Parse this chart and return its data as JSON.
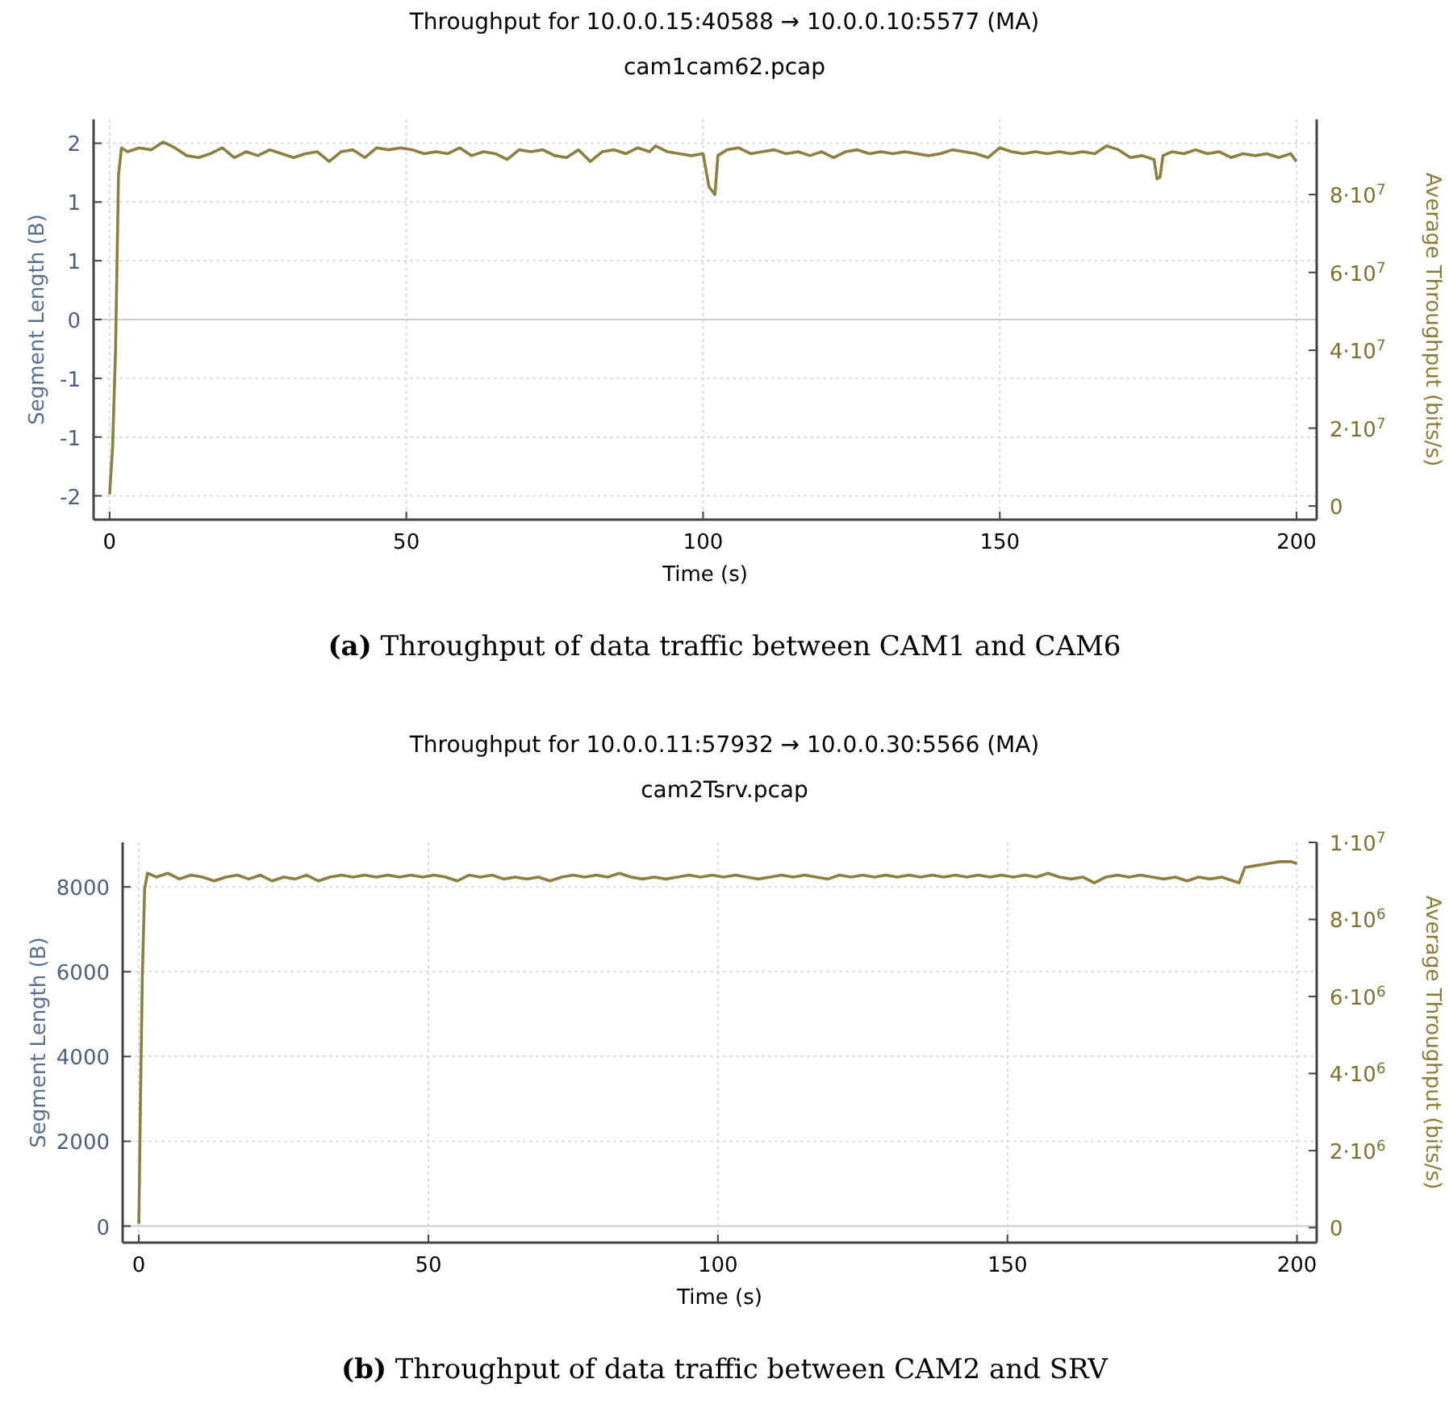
{
  "chart_data": [
    {
      "type": "line",
      "title": "Throughput for 10.0.0.15:40588 → 10.0.0.10:5577 (MA)",
      "subtitle": "cam1cam62.pcap",
      "xlabel": "Time (s)",
      "ylabel": "Segment Length (B)",
      "y2label": "Average Throughput (bits/s)",
      "annotations": [
        "(a) Throughput of data traffic between CAM1 and CAM6"
      ],
      "grid": true,
      "xlim": [
        -2.7,
        203.4
      ],
      "xticks": [
        0,
        50,
        100,
        150,
        200
      ],
      "ylim": [
        -2.27,
        2.27
      ],
      "yticks": [
        {
          "value": -2,
          "label": "-2"
        },
        {
          "value": -1.333,
          "label": "-1"
        },
        {
          "value": -0.667,
          "label": "-1"
        },
        0,
        {
          "value": 0.667,
          "label": "1"
        },
        {
          "value": 1.333,
          "label": "1"
        },
        2
      ],
      "y2lim": [
        -3500000.0,
        99300000.0
      ],
      "y2ticks": [
        0,
        {
          "value": 20000000.0,
          "label": "2·10$^{7}$"
        },
        {
          "value": 40000000.0,
          "label": "4·10$^{7}$"
        },
        {
          "value": 60000000.0,
          "label": "6·10$^{7}$"
        },
        {
          "value": 80000000.0,
          "label": "8·10$^{7}$"
        }
      ],
      "series": [
        {
          "color": "#8b8040",
          "axis": "y2",
          "x": [
            0,
            0.5,
            1,
            1.5,
            2,
            3,
            5,
            7,
            9,
            11,
            13,
            15,
            17,
            19,
            21,
            23,
            25,
            27,
            29,
            31,
            33,
            35,
            37,
            39,
            41,
            43,
            45,
            47,
            49,
            51,
            53,
            55,
            57,
            59,
            61,
            63,
            65,
            67,
            69,
            71,
            73,
            75,
            77,
            79,
            81,
            83,
            85,
            87,
            89,
            91,
            92,
            94,
            96,
            98,
            100,
            101,
            102,
            102.5,
            104,
            106,
            108,
            110,
            112,
            114,
            116,
            118,
            120,
            122,
            124,
            126,
            128,
            130,
            132,
            134,
            136,
            138,
            140,
            142,
            144,
            146,
            148,
            150,
            152,
            154,
            156,
            158,
            160,
            162,
            164,
            166,
            168,
            170,
            172,
            174,
            176,
            176.5,
            177,
            177.5,
            179,
            181,
            183,
            185,
            187,
            189,
            191,
            193,
            195,
            197,
            199,
            200
          ],
          "values": [
            3000000.0,
            15000000.0,
            40000000.0,
            85000000.0,
            92000000.0,
            91000000.0,
            92000000.0,
            91500000.0,
            93500000.0,
            92000000.0,
            90000000.0,
            89500000.0,
            90500000.0,
            92000000.0,
            89500000.0,
            91000000.0,
            90000000.0,
            91500000.0,
            90500000.0,
            89500000.0,
            90500000.0,
            91000000.0,
            88500000.0,
            91000000.0,
            91500000.0,
            89500000.0,
            92000000.0,
            91500000.0,
            92000000.0,
            91500000.0,
            90500000.0,
            91000000.0,
            90500000.0,
            92000000.0,
            90000000.0,
            91000000.0,
            90500000.0,
            89000000.0,
            91500000.0,
            91000000.0,
            91500000.0,
            90000000.0,
            89500000.0,
            91500000.0,
            88500000.0,
            91000000.0,
            91500000.0,
            90500000.0,
            92000000.0,
            91000000.0,
            92500000.0,
            91000000.0,
            90500000.0,
            90000000.0,
            90500000.0,
            82000000.0,
            80000000.0,
            90000000.0,
            91500000.0,
            92000000.0,
            90500000.0,
            91000000.0,
            91500000.0,
            90500000.0,
            91000000.0,
            90000000.0,
            91000000.0,
            89500000.0,
            91000000.0,
            91500000.0,
            90500000.0,
            91000000.0,
            90500000.0,
            91000000.0,
            90500000.0,
            90000000.0,
            90500000.0,
            91500000.0,
            91000000.0,
            90500000.0,
            89500000.0,
            92000000.0,
            91000000.0,
            90500000.0,
            91000000.0,
            90500000.0,
            91000000.0,
            90500000.0,
            91000000.0,
            90500000.0,
            92500000.0,
            91500000.0,
            89500000.0,
            90000000.0,
            89000000.0,
            84000000.0,
            84500000.0,
            90000000.0,
            91000000.0,
            90500000.0,
            91500000.0,
            90500000.0,
            91000000.0,
            89500000.0,
            90500000.0,
            90000000.0,
            90500000.0,
            89500000.0,
            90500000.0,
            88500000.0
          ]
        }
      ]
    },
    {
      "type": "line",
      "title": "Throughput for 10.0.0.11:57932 → 10.0.0.30:5566 (MA)",
      "subtitle": "cam2Tsrv.pcap",
      "xlabel": "Time (s)",
      "ylabel": "Segment Length (B)",
      "y2label": "Average Throughput (bits/s)",
      "annotations": [
        "(b) Throughput of data traffic between CAM2 and SRV"
      ],
      "grid": true,
      "xlim": [
        -2.8,
        203.4
      ],
      "xticks": [
        0,
        50,
        100,
        150,
        200
      ],
      "ylim": [
        -390,
        9050
      ],
      "yticks": [
        0,
        2000,
        4000,
        6000,
        8000
      ],
      "y2lim": [
        -390000.0,
        10000000.0
      ],
      "y2ticks": [
        0,
        {
          "value": 2000000.0,
          "label": "2·10$^{6}$"
        },
        {
          "value": 4000000.0,
          "label": "4·10$^{6}$"
        },
        {
          "value": 6000000.0,
          "label": "6·10$^{6}$"
        },
        {
          "value": 8000000.0,
          "label": "8·10$^{6}$"
        },
        {
          "value": 10000000.0,
          "label": "1·10$^{7}$"
        }
      ],
      "series": [
        {
          "color": "#8b8040",
          "axis": "y2",
          "x": [
            0,
            0.3,
            0.6,
            1,
            1.5,
            3,
            5,
            7,
            9,
            11,
            13,
            15,
            17,
            19,
            21,
            23,
            25,
            27,
            29,
            31,
            33,
            35,
            37,
            39,
            41,
            43,
            45,
            47,
            49,
            51,
            53,
            55,
            57,
            59,
            61,
            63,
            65,
            67,
            69,
            71,
            73,
            75,
            77,
            79,
            81,
            83,
            85,
            87,
            89,
            91,
            93,
            95,
            97,
            99,
            101,
            103,
            105,
            107,
            109,
            111,
            113,
            115,
            117,
            119,
            121,
            123,
            125,
            127,
            129,
            131,
            133,
            135,
            137,
            139,
            141,
            143,
            145,
            147,
            149,
            151,
            153,
            155,
            157,
            159,
            161,
            163,
            165,
            167,
            169,
            171,
            173,
            175,
            177,
            179,
            181,
            183,
            185,
            187,
            189,
            190,
            191,
            193,
            195,
            197,
            199,
            200
          ],
          "values": [
            100000.0,
            3500000.0,
            6500000.0,
            8800000.0,
            9200000.0,
            9100000.0,
            9200000.0,
            9050000.0,
            9150000.0,
            9100000.0,
            9000000.0,
            9100000.0,
            9150000.0,
            9050000.0,
            9150000.0,
            9000000.0,
            9100000.0,
            9050000.0,
            9150000.0,
            9000000.0,
            9100000.0,
            9150000.0,
            9100000.0,
            9150000.0,
            9100000.0,
            9150000.0,
            9100000.0,
            9150000.0,
            9100000.0,
            9150000.0,
            9100000.0,
            9000000.0,
            9150000.0,
            9100000.0,
            9150000.0,
            9050000.0,
            9100000.0,
            9050000.0,
            9100000.0,
            9000000.0,
            9100000.0,
            9150000.0,
            9100000.0,
            9150000.0,
            9100000.0,
            9200000.0,
            9100000.0,
            9050000.0,
            9100000.0,
            9050000.0,
            9100000.0,
            9150000.0,
            9100000.0,
            9150000.0,
            9100000.0,
            9150000.0,
            9100000.0,
            9050000.0,
            9100000.0,
            9150000.0,
            9100000.0,
            9150000.0,
            9100000.0,
            9050000.0,
            9150000.0,
            9100000.0,
            9150000.0,
            9100000.0,
            9150000.0,
            9100000.0,
            9150000.0,
            9100000.0,
            9150000.0,
            9100000.0,
            9150000.0,
            9100000.0,
            9150000.0,
            9100000.0,
            9150000.0,
            9100000.0,
            9150000.0,
            9100000.0,
            9200000.0,
            9100000.0,
            9050000.0,
            9100000.0,
            8950000.0,
            9100000.0,
            9150000.0,
            9100000.0,
            9150000.0,
            9100000.0,
            9050000.0,
            9100000.0,
            9000000.0,
            9100000.0,
            9050000.0,
            9100000.0,
            9000000.0,
            8950000.0,
            9350000.0,
            9400000.0,
            9450000.0,
            9500000.0,
            9500000.0,
            9450000.0
          ]
        }
      ]
    }
  ]
}
